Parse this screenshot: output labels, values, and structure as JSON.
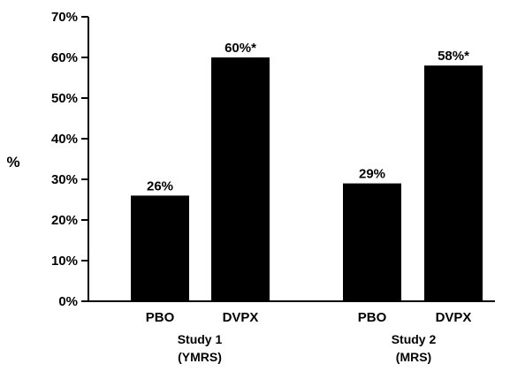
{
  "chart_data": {
    "type": "bar",
    "ylabel": "%",
    "ylim": [
      0,
      70
    ],
    "yticks": [
      "0%",
      "10%",
      "20%",
      "30%",
      "40%",
      "50%",
      "60%",
      "70%"
    ],
    "grid": false,
    "groups": [
      {
        "label_line1": "Study 1",
        "label_line2": "(YMRS)",
        "bars": [
          {
            "category": "PBO",
            "value": 26,
            "label": "26%"
          },
          {
            "category": "DVPX",
            "value": 60,
            "label": "60%*"
          }
        ]
      },
      {
        "label_line1": "Study 2",
        "label_line2": "(MRS)",
        "bars": [
          {
            "category": "PBO",
            "value": 29,
            "label": "29%"
          },
          {
            "category": "DVPX",
            "value": 58,
            "label": "58%*"
          }
        ]
      }
    ],
    "bar_color": "#000000"
  }
}
